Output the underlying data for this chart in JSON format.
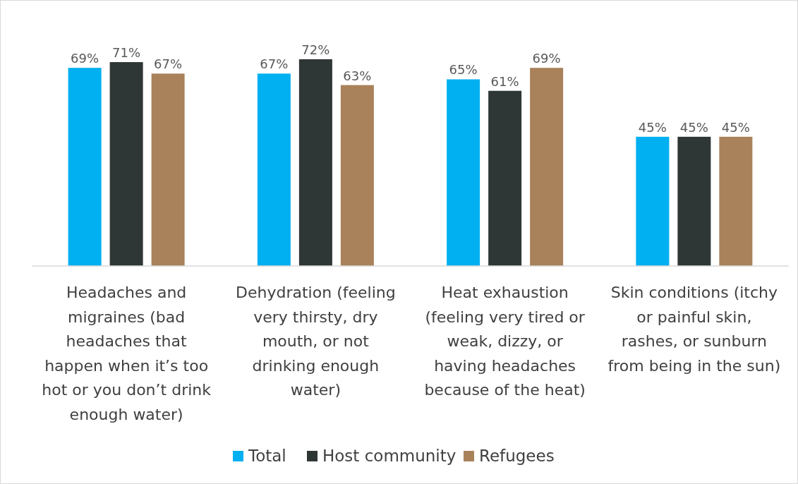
{
  "chart_data": {
    "type": "bar",
    "categories": [
      "Headaches and migraines (bad headaches that happen when it’s too hot or you don’t drink enough water)",
      "Dehydration (feeling very thirsty, dry mouth, or not drinking enough water)",
      "Heat exhaustion (feeling very tired or weak, dizzy, or having headaches because of the heat)",
      "Skin conditions (itchy or painful skin, rashes, or sunburn from being in the sun)"
    ],
    "series": [
      {
        "name": "Total",
        "color": "#00b0f0",
        "values": [
          69,
          67,
          65,
          45
        ],
        "value_labels": [
          "69%",
          "67%",
          "65%",
          "45%"
        ]
      },
      {
        "name": "Host community",
        "color": "#2f3636",
        "values": [
          71,
          72,
          61,
          45
        ],
        "value_labels": [
          "71%",
          "72%",
          "61%",
          "45%"
        ]
      },
      {
        "name": "Refugees",
        "color": "#a9825b",
        "values": [
          67,
          63,
          69,
          45
        ],
        "value_labels": [
          "67%",
          "63%",
          "69%",
          "45%"
        ]
      }
    ],
    "tick_labels": "x",
    "legend": "bottom"
  }
}
